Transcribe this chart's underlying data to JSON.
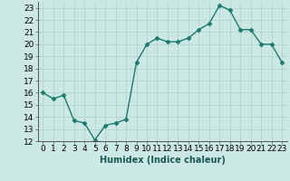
{
  "x": [
    0,
    1,
    2,
    3,
    4,
    5,
    6,
    7,
    8,
    9,
    10,
    11,
    12,
    13,
    14,
    15,
    16,
    17,
    18,
    19,
    20,
    21,
    22,
    23
  ],
  "y": [
    16.0,
    15.5,
    15.8,
    13.7,
    13.5,
    12.1,
    13.3,
    13.5,
    13.8,
    18.5,
    20.0,
    20.5,
    20.2,
    20.2,
    20.5,
    21.2,
    21.7,
    23.2,
    22.8,
    21.2,
    21.2,
    20.0,
    20.0,
    18.5
  ],
  "line_color": "#1a7a6e",
  "marker": "D",
  "markersize": 2.5,
  "linewidth": 1.0,
  "bg_color": "#cce8e4",
  "grid_color": "#aed0cb",
  "xlabel": "Humidex (Indice chaleur)",
  "ylim": [
    12,
    23.5
  ],
  "yticks": [
    12,
    13,
    14,
    15,
    16,
    17,
    18,
    19,
    20,
    21,
    22,
    23
  ],
  "xticks": [
    0,
    1,
    2,
    3,
    4,
    5,
    6,
    7,
    8,
    9,
    10,
    11,
    12,
    13,
    14,
    15,
    16,
    17,
    18,
    19,
    20,
    21,
    22,
    23
  ],
  "xlabel_fontsize": 7,
  "tick_fontsize": 6.5
}
